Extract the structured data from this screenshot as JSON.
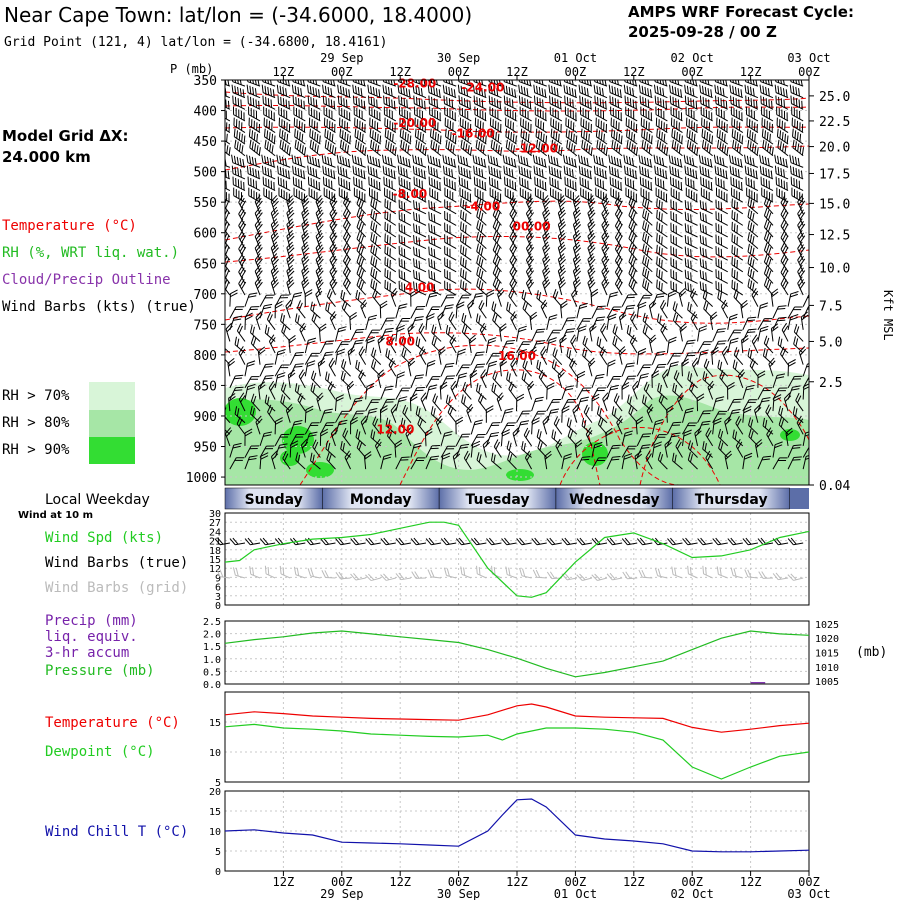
{
  "header": {
    "title": "Near Cape Town:  lat/lon = (-34.6000, 18.4000)",
    "subtitle": "Grid Point (121, 4) lat/lon = (-34.6800, 18.4161)",
    "cycle_line1": "AMPS WRF Forecast Cycle:",
    "cycle_line2": "2025-09-28 / 00  Z"
  },
  "time_axis": {
    "hour_labels": [
      "12Z",
      "00Z",
      "12Z",
      "00Z",
      "12Z",
      "00Z",
      "12Z",
      "00Z",
      "12Z",
      "00Z"
    ],
    "hours": [
      12,
      24,
      36,
      48,
      60,
      72,
      84,
      96,
      108,
      120
    ],
    "date_labels": [
      "29 Sep",
      "30 Sep",
      "01 Oct",
      "02 Oct",
      "03 Oct"
    ],
    "date_hours": [
      24,
      48,
      72,
      96,
      120
    ],
    "range_hours": [
      0,
      120
    ]
  },
  "left_panel": {
    "grid_label": "Model Grid ΔX:",
    "grid_value": " 24.000 km",
    "legend_temperature": "Temperature (°C)",
    "legend_rh": "RH (%, WRT liq. wat.)",
    "legend_cloud": "Cloud/Precip Outline",
    "legend_wind": "Wind Barbs (kts) (true)",
    "rh_levels": [
      "RH > 70%",
      "RH > 80%",
      "RH > 90%"
    ],
    "rh_colors": [
      "#d8f5d8",
      "#a6e6a6",
      "#33dd33"
    ]
  },
  "colors": {
    "temperature": "#ee0000",
    "rh_text": "#22bb22",
    "cloud": "#8833aa",
    "wind_speed": "#22cc22",
    "pressure": "#22bb22",
    "dewpoint": "#22cc22",
    "windchill": "#1111aa",
    "precip_text": "#7722aa",
    "grid_barb": "#bbbbbb",
    "weekday_bar": "#5c6ea8"
  },
  "chart_data": [
    {
      "type": "heatmap",
      "title": "Time-height cross section",
      "ylabel": "P (mb)",
      "y2label": "Kft MSL",
      "pressure_ticks": [
        350,
        400,
        450,
        500,
        550,
        600,
        650,
        700,
        750,
        800,
        850,
        900,
        950,
        1000
      ],
      "pressure_tick_labels": [
        "350",
        "400",
        "450",
        "500",
        "550",
        "600",
        "650",
        "700",
        "750",
        "800",
        "850",
        "900",
        "950",
        "1000"
      ],
      "kft_ticks": [
        25.0,
        22.5,
        20.0,
        17.5,
        15.0,
        12.5,
        10.0,
        7.5,
        5.0,
        2.5,
        0.04
      ],
      "kft_tick_labels": [
        "25.0",
        "22.5",
        "20.0",
        "17.5",
        "15.0",
        "12.5",
        "10.0",
        "7.5",
        "5.0",
        "2.5",
        "0.04"
      ],
      "kft_pressures": [
        376,
        417,
        459,
        503,
        552,
        603,
        657,
        719,
        778,
        844,
        1013
      ],
      "temperature_labels": [
        {
          "text": "-28.00",
          "hour": 39,
          "p": 362
        },
        {
          "text": "-24.00",
          "hour": 53,
          "p": 369
        },
        {
          "text": "-20.00",
          "hour": 39,
          "p": 427
        },
        {
          "text": "-16.00",
          "hour": 51,
          "p": 444
        },
        {
          "text": "-12.00",
          "hour": 64,
          "p": 469
        },
        {
          "text": "-8.00",
          "hour": 38,
          "p": 543
        },
        {
          "text": "-4.00",
          "hour": 53,
          "p": 564
        },
        {
          "text": "00.00",
          "hour": 63,
          "p": 596
        },
        {
          "text": "4.00",
          "hour": 40,
          "p": 696
        },
        {
          "text": "8.00",
          "hour": 36,
          "p": 785
        },
        {
          "text": "16.00",
          "hour": 60,
          "p": 808
        },
        {
          "text": "12.00",
          "hour": 35,
          "p": 929
        }
      ]
    },
    {
      "type": "line",
      "title": "Wind Spd (kts)",
      "yticks": [
        0,
        3,
        6,
        9,
        12,
        15,
        18,
        21,
        24,
        27,
        30
      ],
      "ylim": [
        0,
        30
      ],
      "series": [
        {
          "name": "Wind Spd (kts)",
          "x": [
            0,
            3,
            6,
            9,
            12,
            18,
            24,
            30,
            36,
            42,
            45,
            48,
            54,
            60,
            63,
            66,
            72,
            78,
            84,
            90,
            96,
            102,
            108,
            114,
            120
          ],
          "values": [
            14,
            14.5,
            18,
            19,
            20,
            21.5,
            22,
            23,
            25,
            27,
            27,
            26,
            12,
            3,
            2.5,
            4,
            14,
            22,
            23.5,
            20,
            15.5,
            16,
            18,
            22,
            24
          ]
        }
      ]
    },
    {
      "type": "line",
      "title": "Precip / Pressure",
      "yticks_left": [
        0.0,
        0.5,
        1.0,
        1.5,
        2.0,
        2.5
      ],
      "yticks_left_labels": [
        "0.0",
        "0.5",
        "1.0",
        "1.5",
        "2.0",
        "2.5"
      ],
      "ylim_left": [
        0,
        2.5
      ],
      "yticks_right": [
        1005,
        1010,
        1015,
        1020,
        1025
      ],
      "ylim_right": [
        1004,
        1026
      ],
      "y2label": "(mb)",
      "series": [
        {
          "name": "Precip (mm)",
          "x": [
            108,
            111
          ],
          "values": [
            0.05,
            0.05
          ]
        },
        {
          "name": "Pressure (mb)",
          "x": [
            0,
            6,
            12,
            18,
            24,
            30,
            36,
            42,
            48,
            54,
            60,
            66,
            72,
            78,
            84,
            90,
            96,
            102,
            108,
            114,
            120
          ],
          "values": [
            1018.2,
            1019.5,
            1020.5,
            1021.8,
            1022.5,
            1021.5,
            1020.5,
            1019.5,
            1018.5,
            1016,
            1013,
            1009.5,
            1006.5,
            1008,
            1010,
            1012,
            1016,
            1020,
            1022.5,
            1021.5,
            1021
          ]
        }
      ]
    },
    {
      "type": "line",
      "title": "Temperature / Dewpoint",
      "yticks": [
        5,
        10,
        15
      ],
      "ylim": [
        5,
        20
      ],
      "series": [
        {
          "name": "Temperature (°C)",
          "x": [
            0,
            6,
            12,
            18,
            24,
            30,
            36,
            42,
            48,
            54,
            60,
            63,
            66,
            72,
            78,
            84,
            90,
            96,
            102,
            108,
            114,
            120
          ],
          "values": [
            16.2,
            16.7,
            16.4,
            16,
            15.8,
            15.6,
            15.5,
            15.4,
            15.3,
            16.2,
            17.7,
            18,
            17.5,
            16,
            15.8,
            15.7,
            15.6,
            14.1,
            13.3,
            13.8,
            14.4,
            14.8
          ]
        },
        {
          "name": "Dewpoint (°C)",
          "x": [
            0,
            6,
            12,
            18,
            24,
            30,
            36,
            42,
            48,
            54,
            57,
            60,
            66,
            72,
            78,
            84,
            90,
            96,
            102,
            108,
            114,
            120
          ],
          "values": [
            14.2,
            14.6,
            14,
            13.8,
            13.5,
            13,
            12.8,
            12.6,
            12.5,
            12.8,
            12,
            13,
            14,
            14,
            13.8,
            13.3,
            12,
            7.5,
            5.5,
            7.5,
            9.3,
            10
          ]
        }
      ]
    },
    {
      "type": "line",
      "title": "Wind Chill T (°C)",
      "yticks": [
        0,
        5,
        10,
        15,
        20
      ],
      "ylim": [
        0,
        20
      ],
      "series": [
        {
          "name": "Wind Chill T (°C)",
          "x": [
            0,
            6,
            12,
            18,
            24,
            30,
            36,
            42,
            48,
            54,
            57,
            60,
            63,
            66,
            72,
            78,
            84,
            90,
            96,
            102,
            108,
            114,
            120
          ],
          "values": [
            10,
            10.3,
            9.5,
            9,
            7.2,
            7,
            6.8,
            6.5,
            6.2,
            10,
            14,
            17.8,
            18,
            16,
            9,
            8,
            7.5,
            6.8,
            5,
            4.8,
            4.8,
            5,
            5.2
          ]
        }
      ]
    }
  ],
  "weekday": {
    "label": "Local Weekday",
    "wind_note": "Wind at 10 m",
    "days": [
      "Sunday",
      "Monday",
      "Tuesday",
      "Wednesday",
      "Thursday"
    ]
  },
  "panel_labels": {
    "wind_spd": "Wind Spd (kts)",
    "wind_true": "Wind Barbs (true)",
    "wind_grid": "Wind Barbs (grid)",
    "precip1": "Precip (mm)",
    "precip2": "liq. equiv.",
    "precip3": "3-hr accum",
    "pressure": "Pressure (mb)",
    "temperature": "Temperature (°C)",
    "dewpoint": "Dewpoint (°C)",
    "windchill": "Wind Chill T (°C)"
  }
}
